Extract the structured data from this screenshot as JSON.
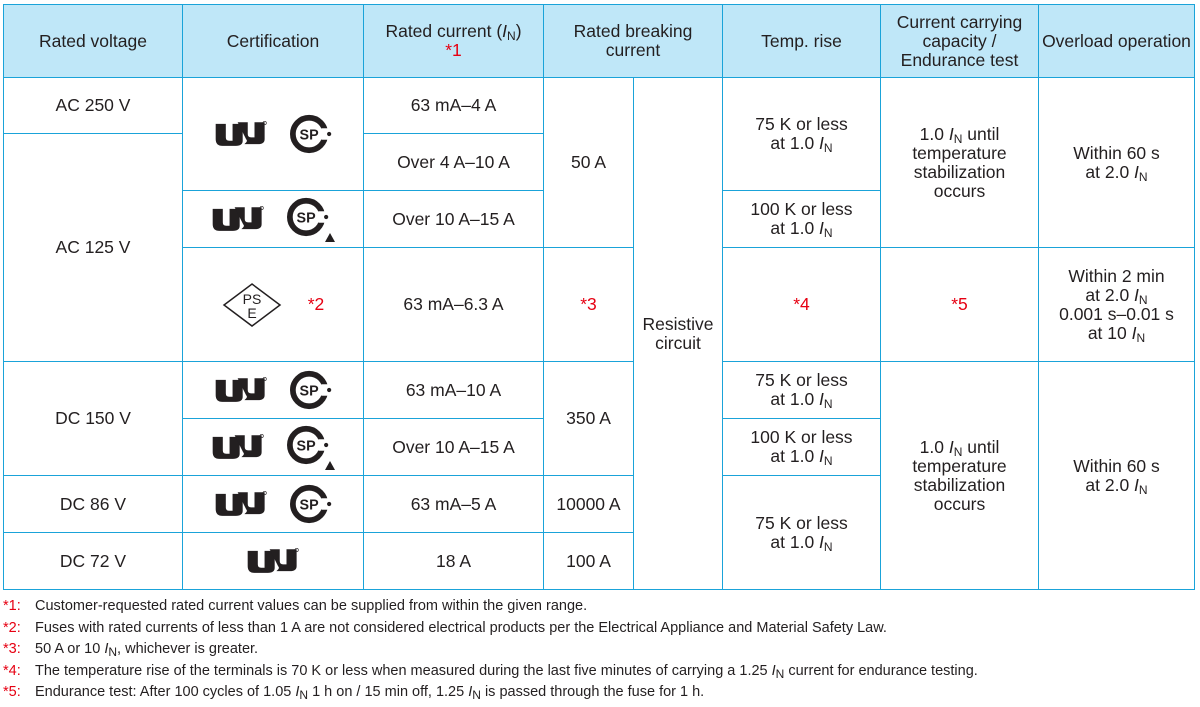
{
  "header": {
    "rated_voltage": "Rated voltage",
    "certification": "Certification",
    "rated_current": "Rated current (",
    "rated_current_sym": "I",
    "rated_current_sub": "N",
    "rated_current_close": ")",
    "rated_current_note": "*1",
    "rated_breaking_current": "Rated breaking current",
    "temp_rise": "Temp. rise",
    "ccc_line1": "Current carrying",
    "ccc_line2": "capacity /",
    "ccc_line3": "Endurance test",
    "overload": "Overload operation"
  },
  "voltages": {
    "ac250": "AC 250 V",
    "ac125": "AC 125 V",
    "dc150": "DC 150 V",
    "dc86": "DC 86 V",
    "dc72": "DC 72 V"
  },
  "currents": {
    "r1": "63 mA–4 A",
    "r2": "Over 4 A–10 A",
    "r3": "Over 10 A–15 A",
    "r4": "63 mA–6.3 A",
    "r5": "63 mA–10 A",
    "r6": "Over 10 A–15 A",
    "r7": "63 mA–5 A",
    "r8": "18 A"
  },
  "breaking": {
    "ac": "50 A",
    "pse": "*3",
    "dc150": "350 A",
    "dc86": "10000 A",
    "dc72": "100 A",
    "circuit": "Resistive circuit"
  },
  "temp": {
    "t75a_line1": "75 K or less",
    "t75a_line2": "at 1.0 ",
    "t100a_line1": "100 K or less",
    "t100a_line2": "at 1.0 ",
    "pse": "*4",
    "t75b_line1": "75 K or less",
    "t75b_line2": "at 1.0 ",
    "t100b_line1": "100 K or less",
    "t100b_line2": "at 1.0 ",
    "t75c_line1": "75 K or less",
    "t75c_line2": "at 1.0 "
  },
  "ccc": {
    "pre": "1.0 ",
    "post": " until",
    "line2": "temperature",
    "line3": "stabilization",
    "line4": "occurs",
    "pse": "*5"
  },
  "overload": {
    "ac_line1": "Within 60 s",
    "ac_line2": "at 2.0 ",
    "pse_line1": "Within 2 min",
    "pse_line2": "at 2.0 ",
    "pse_line3": "0.001 s–0.01 s",
    "pse_line4": "at 10 ",
    "dc_line1": "Within 60 s",
    "dc_line2": "at 2.0 "
  },
  "symbols": {
    "I": "I",
    "N": "N"
  },
  "cert": {
    "pse_note": "*2",
    "pse_text_top": "PS",
    "pse_text_bottom": "E"
  },
  "notes": [
    {
      "mark": "*1:",
      "text": "Customer-requested rated current values can be supplied from within the given range."
    },
    {
      "mark": "*2:",
      "text": "Fuses with rated currents of less than 1 A are not considered electrical products per the Electrical Appliance and Material Safety Law."
    },
    {
      "mark": "*3:",
      "text_a": "50 A or 10 ",
      "text_b": ", whichever is greater."
    },
    {
      "mark": "*4:",
      "text_a": "The temperature rise of the terminals is 70 K or less when measured during the last five minutes of carrying a 1.25 ",
      "text_b": " current for endurance testing."
    },
    {
      "mark": "*5:",
      "text_a": "Endurance test: After 100 cycles of 1.05 ",
      "text_b": " 1 h on / 15 min off, 1.25 ",
      "text_c": " is passed through the fuse for 1 h."
    }
  ],
  "colors": {
    "border": "#1aa3d9",
    "header_bg": "#bfe7f8",
    "note_red": "#e60012",
    "text": "#231f20"
  }
}
